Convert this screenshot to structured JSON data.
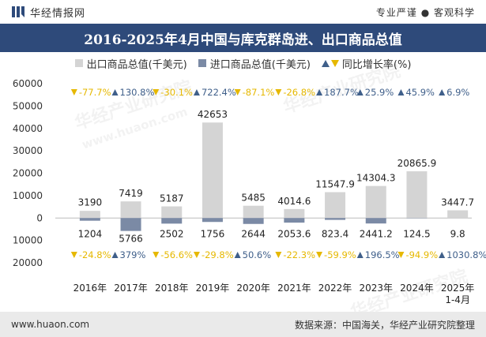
{
  "header": {
    "brand_name": "华经情报网",
    "slogan": "专业严谨 ● 客观科学"
  },
  "chart_data": {
    "type": "bar",
    "title": "2016-2025年4月中国与库克群岛进、出口商品总值",
    "categories": [
      "2016年",
      "2017年",
      "2018年",
      "2019年",
      "2020年",
      "2021年",
      "2022年",
      "2023年",
      "2024年",
      "2025年\n1-4月"
    ],
    "series": [
      {
        "name": "出口商品总值(千美元)",
        "values": [
          3190,
          7419,
          5187,
          42653,
          5485,
          4014.6,
          11547.9,
          14304.3,
          20865.9,
          3447.7
        ],
        "labels": [
          "3190",
          "7419",
          "5187",
          "42653",
          "5485",
          "4014.6",
          "11547.9",
          "14304.3",
          "20865.9",
          "3447.7"
        ],
        "yoy": [
          {
            "dir": "down",
            "text": "-77.7%"
          },
          {
            "dir": "up",
            "text": "130.8%"
          },
          {
            "dir": "down",
            "text": "-30.1%"
          },
          {
            "dir": "up",
            "text": "722.4%"
          },
          {
            "dir": "down",
            "text": "-87.1%"
          },
          {
            "dir": "down",
            "text": "-26.8%"
          },
          {
            "dir": "up",
            "text": "187.7%"
          },
          {
            "dir": "up",
            "text": "25.9%"
          },
          {
            "dir": "up",
            "text": "45.9%"
          },
          {
            "dir": "up",
            "text": "6.9%"
          }
        ]
      },
      {
        "name": "进口商品总值(千美元)",
        "values": [
          1204,
          5766,
          2502,
          1756,
          2644,
          2053.6,
          823.4,
          2441.2,
          124.5,
          9.8
        ],
        "labels": [
          "1204",
          "5766",
          "2502",
          "1756",
          "2644",
          "2053.6",
          "823.4",
          "2441.2",
          "124.5",
          "9.8"
        ],
        "yoy": [
          {
            "dir": "down",
            "text": "-24.8%"
          },
          {
            "dir": "up",
            "text": "379%"
          },
          {
            "dir": "down",
            "text": "-56.6%"
          },
          {
            "dir": "down",
            "text": "-29.8%"
          },
          {
            "dir": "up",
            "text": "50.6%"
          },
          {
            "dir": "down",
            "text": "-22.3%"
          },
          {
            "dir": "down",
            "text": "-59.9%"
          },
          {
            "dir": "up",
            "text": "196.5%"
          },
          {
            "dir": "down",
            "text": "-94.9%"
          },
          {
            "dir": "up",
            "text": "1030.8%"
          }
        ]
      }
    ],
    "yoy_legend": "同比增长率(%)",
    "ylim": [
      -20000,
      60000
    ],
    "yticks": [
      {
        "value": 60000,
        "label": "60000"
      },
      {
        "value": 50000,
        "label": "50000"
      },
      {
        "value": 40000,
        "label": "40000"
      },
      {
        "value": 30000,
        "label": "30000"
      },
      {
        "value": 20000,
        "label": "20000"
      },
      {
        "value": 10000,
        "label": "10000"
      },
      {
        "value": 0,
        "label": "0"
      },
      {
        "value": -10000,
        "label": "10000"
      },
      {
        "value": -20000,
        "label": "20000"
      }
    ],
    "grid": false,
    "legend_position": "top",
    "colors": {
      "export": "#d4d4d4",
      "import": "#7b8aa5",
      "up": "#3f5f8a",
      "down": "#e6b800",
      "title_bg": "#2e4a7a"
    }
  },
  "footer": {
    "url": "www.huaon.com",
    "source": "数据来源：中国海关，华经产业研究院整理"
  },
  "watermark": {
    "text": "华经产业研究院",
    "subtext": "www.huaon.com"
  }
}
